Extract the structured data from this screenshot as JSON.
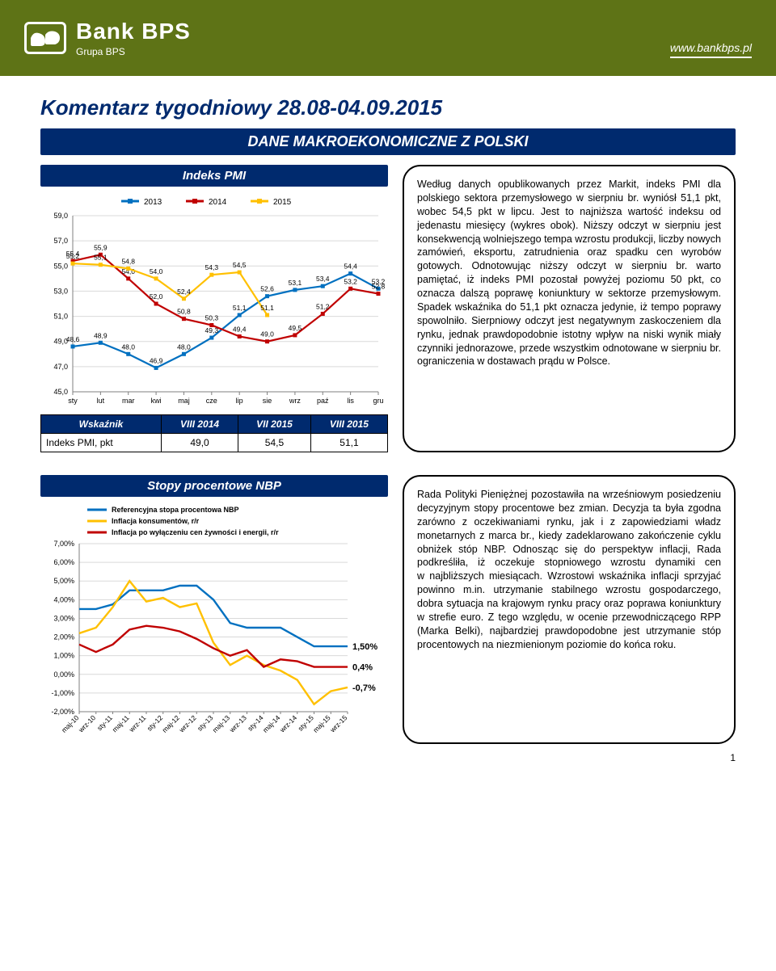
{
  "header": {
    "bank_name": "Bank BPS",
    "group_name": "Grupa BPS",
    "url": "www.bankbps.pl"
  },
  "title": "Komentarz tygodniowy 28.08-04.09.2015",
  "section_band": "DANE MAKROEKONOMICZNE Z POLSKI",
  "page_number": "1",
  "pmi_chart": {
    "title": "Indeks PMI",
    "type": "line",
    "x_labels": [
      "sty",
      "lut",
      "mar",
      "kwi",
      "maj",
      "cze",
      "lip",
      "sie",
      "wrz",
      "paź",
      "lis",
      "gru"
    ],
    "y_min": 45.0,
    "y_max": 59.0,
    "y_step": 2.0,
    "y_ticks": [
      "45,0",
      "47,0",
      "49,0",
      "51,0",
      "53,0",
      "55,0",
      "57,0",
      "59,0"
    ],
    "series": [
      {
        "name": "2013",
        "color": "#0070c0",
        "values": [
          48.6,
          48.9,
          48.0,
          46.9,
          48.0,
          49.3,
          51.1,
          52.6,
          53.1,
          53.4,
          54.4,
          53.2
        ],
        "labels": [
          "48,6",
          "48,9",
          "48,0",
          "46,9",
          "48,0",
          "49,3",
          "51,1",
          "52,6",
          "53,1",
          "53,4",
          "54,4",
          "53,2"
        ]
      },
      {
        "name": "2014",
        "color": "#c00000",
        "values": [
          55.4,
          55.9,
          54.0,
          52.0,
          50.8,
          50.3,
          49.4,
          49.0,
          49.5,
          51.2,
          53.2,
          52.8
        ],
        "labels": [
          "55,4",
          "55,9",
          "54,0",
          "52,0",
          "50,8",
          "50,3",
          "49,4",
          "49,0",
          "49,5",
          "51,2",
          "53,2",
          "52,8"
        ]
      },
      {
        "name": "2015",
        "color": "#ffc000",
        "values": [
          55.2,
          55.1,
          54.8,
          54.0,
          52.4,
          54.3,
          54.5,
          51.1
        ],
        "labels": [
          "55,2",
          "55,1",
          "54,8",
          "54,0",
          "52,4",
          "54,3",
          "54,5",
          "51,1"
        ]
      }
    ],
    "legend": [
      "2013",
      "2014",
      "2015"
    ],
    "background": "#ffffff",
    "grid_color": "#d9d9d9",
    "axis_color": "#7f7f7f",
    "label_fontsize": 9
  },
  "pmi_table": {
    "columns": [
      "Wskaźnik",
      "VIII 2014",
      "VII 2015",
      "VIII 2015"
    ],
    "rows": [
      [
        "Indeks PMI, pkt",
        "49,0",
        "54,5",
        "51,1"
      ]
    ]
  },
  "pmi_text": "Według danych opublikowanych przez Markit, indeks PMI dla polskiego sektora przemysłowego w sierpniu br. wyniósł 51,1 pkt, wobec 54,5 pkt w lipcu. Jest to najniższa wartość indeksu od jedenastu miesięcy (wykres obok). Niższy odczyt w sierpniu jest konsekwencją wolniejszego tempa wzrostu produkcji, liczby nowych zamówień, eksportu, zatrudnienia oraz spadku cen wyrobów gotowych. Odnotowując niższy odczyt w sierpniu br. warto pamiętać, iż indeks PMI pozostał powyżej poziomu 50 pkt, co oznacza dalszą poprawę koniunktury w sektorze przemysłowym. Spadek wskaźnika do 51,1 pkt oznacza jedynie, iż tempo poprawy spowolniło. Sierpniowy odczyt jest negatywnym zaskoczeniem dla rynku, jednak prawdopodobnie istotny wpływ na niski wynik miały czynniki jednorazowe, przede wszystkim odnotowane w sierpniu br. ograniczenia w dostawach prądu w Polsce.",
  "nbp_chart": {
    "title": "Stopy procentowe NBP",
    "type": "line",
    "x_labels": [
      "maj-10",
      "wrz-10",
      "sty-11",
      "maj-11",
      "wrz-11",
      "sty-12",
      "maj-12",
      "wrz-12",
      "sty-13",
      "maj-13",
      "wrz-13",
      "sty-14",
      "maj-14",
      "wrz-14",
      "sty-15",
      "maj-15",
      "wrz-15"
    ],
    "y_min": -2.0,
    "y_max": 7.0,
    "y_step": 1.0,
    "y_ticks": [
      "-2,00%",
      "-1,00%",
      "0,00%",
      "1,00%",
      "2,00%",
      "3,00%",
      "4,00%",
      "5,00%",
      "6,00%",
      "7,00%"
    ],
    "series": [
      {
        "name": "Referencyjna stopa procentowa NBP",
        "color": "#0070c0",
        "width": 2,
        "values": [
          3.5,
          3.5,
          3.75,
          4.5,
          4.5,
          4.5,
          4.75,
          4.75,
          4.0,
          2.75,
          2.5,
          2.5,
          2.5,
          2.0,
          1.5,
          1.5,
          1.5
        ]
      },
      {
        "name": "Inflacja konsumentów, r/r",
        "color": "#ffc000",
        "width": 2,
        "values": [
          2.2,
          2.5,
          3.6,
          5.0,
          3.9,
          4.1,
          3.6,
          3.8,
          1.7,
          0.5,
          1.0,
          0.5,
          0.2,
          -0.3,
          -1.6,
          -0.9,
          -0.7
        ]
      },
      {
        "name": "Inflacja po wyłączeniu cen żywności i energii, r/r",
        "color": "#c00000",
        "width": 2,
        "values": [
          1.6,
          1.2,
          1.6,
          2.4,
          2.6,
          2.5,
          2.3,
          1.9,
          1.4,
          1.0,
          1.3,
          0.4,
          0.8,
          0.7,
          0.4,
          0.4,
          0.4
        ]
      }
    ],
    "end_labels": [
      {
        "text": "1,50%",
        "y": 1.5,
        "color": "#0070c0"
      },
      {
        "text": "0,4%",
        "y": 0.4,
        "color": "#c00000"
      },
      {
        "text": "-0,7%",
        "y": -0.7,
        "color": "#ffc000"
      }
    ],
    "background": "#ffffff",
    "grid_color": "#d9d9d9",
    "axis_color": "#7f7f7f",
    "label_fontsize": 9
  },
  "nbp_text": "Rada Polityki Pieniężnej pozostawiła na wrześniowym posiedzeniu decyzyjnym stopy procentowe bez zmian. Decyzja ta była zgodna zarówno z oczekiwaniami rynku, jak i z zapowiedziami władz monetarnych z marca br., kiedy zadeklarowano zakończenie cyklu obniżek stóp NBP. Odnosząc się do perspektyw inflacji, Rada podkreśliła, iż oczekuje stopniowego wzrostu dynamiki cen w najbliższych miesiącach. Wzrostowi wskaźnika inflacji sprzyjać powinno m.in. utrzymanie stabilnego wzrostu gospodarczego, dobra sytuacja na krajowym rynku pracy oraz poprawa koniunktury w strefie euro. Z tego względu, w ocenie przewodniczącego RPP (Marka Belki), najbardziej prawdopodobne jest utrzymanie stóp procentowych na niezmienionym poziomie do końca roku."
}
